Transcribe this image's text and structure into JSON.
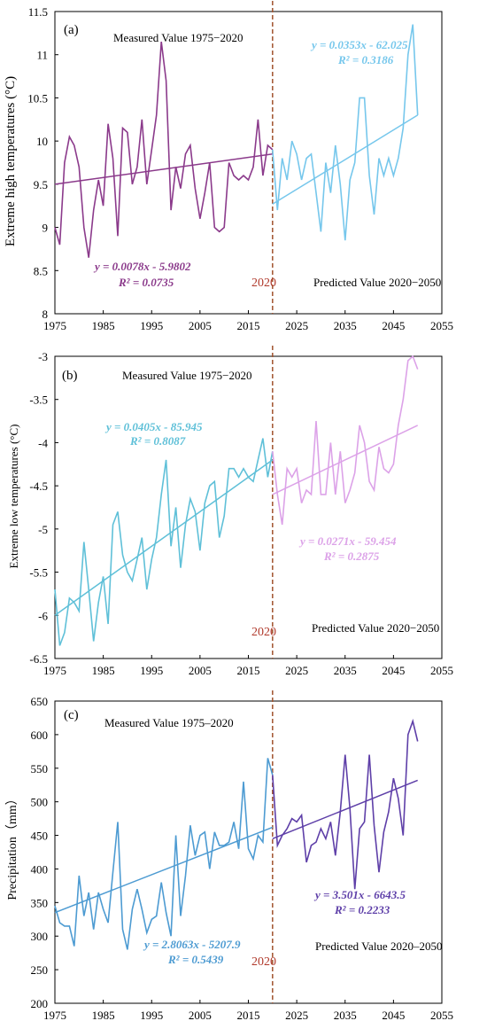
{
  "colors": {
    "divider": "#a0522d",
    "marker": "#b0392b",
    "a_measured": "#8b3a8b",
    "a_predicted": "#76c7ec",
    "b_measured": "#5fc0d8",
    "b_predicted": "#dca2e8",
    "c_measured": "#4d9bd2",
    "c_predicted": "#5e3fa8"
  },
  "chart_data": [
    {
      "type": "line",
      "panel_label": "(a)",
      "ylabel": "Extreme high temperatures (°C)",
      "ylim": [
        8,
        11.5
      ],
      "yticks": [
        8,
        8.5,
        9,
        9.5,
        10,
        10.5,
        11,
        11.5
      ],
      "xlim": [
        1975,
        2055
      ],
      "xticks": [
        1975,
        1985,
        1995,
        2005,
        2015,
        2025,
        2035,
        2045,
        2055
      ],
      "measured_label": "Measured Value 1975−2020",
      "predicted_label": "Predicted Value 2020−2050",
      "marker_year": "2020",
      "measured": {
        "x": [
          1975,
          1976,
          1977,
          1978,
          1979,
          1980,
          1981,
          1982,
          1983,
          1984,
          1985,
          1986,
          1987,
          1988,
          1989,
          1990,
          1991,
          1992,
          1993,
          1994,
          1995,
          1996,
          1997,
          1998,
          1999,
          2000,
          2001,
          2002,
          2003,
          2004,
          2005,
          2006,
          2007,
          2008,
          2009,
          2010,
          2011,
          2012,
          2013,
          2014,
          2015,
          2016,
          2017,
          2018,
          2019,
          2020
        ],
        "y": [
          9.0,
          8.8,
          9.75,
          10.05,
          9.95,
          9.7,
          9.0,
          8.65,
          9.2,
          9.55,
          9.25,
          10.2,
          9.8,
          8.9,
          10.15,
          10.1,
          9.5,
          9.7,
          10.25,
          9.5,
          9.9,
          10.3,
          11.15,
          10.7,
          9.2,
          9.7,
          9.45,
          9.85,
          9.95,
          9.45,
          9.1,
          9.4,
          9.75,
          9.0,
          8.95,
          9.0,
          9.75,
          9.6,
          9.55,
          9.6,
          9.55,
          9.7,
          10.25,
          9.6,
          9.95,
          9.9
        ]
      },
      "predicted": {
        "x": [
          2020,
          2021,
          2022,
          2023,
          2024,
          2025,
          2026,
          2027,
          2028,
          2029,
          2030,
          2031,
          2032,
          2033,
          2034,
          2035,
          2036,
          2037,
          2038,
          2039,
          2040,
          2041,
          2042,
          2043,
          2044,
          2045,
          2046,
          2047,
          2048,
          2049,
          2050
        ],
        "y": [
          9.9,
          9.2,
          9.8,
          9.55,
          10.0,
          9.85,
          9.55,
          9.8,
          9.85,
          9.4,
          8.95,
          9.75,
          9.4,
          9.95,
          9.5,
          8.85,
          9.55,
          9.75,
          10.5,
          10.5,
          9.6,
          9.15,
          9.8,
          9.6,
          9.8,
          9.6,
          9.8,
          10.15,
          11.0,
          11.35,
          10.3
        ]
      },
      "trend_measured": {
        "equation": "y = 0.0078x - 5.9802",
        "r2": "R² = 0.0735",
        "from": 1975,
        "to": 2020,
        "y1": 9.5,
        "y2": 9.85
      },
      "trend_predicted": {
        "equation": "y = 0.0353x - 62.025",
        "r2": "R² = 0.3186",
        "from": 2020,
        "to": 2050,
        "y1": 9.27,
        "y2": 10.3
      }
    },
    {
      "type": "line",
      "panel_label": "(b)",
      "ylabel": "Extreme low temperatures (°C)",
      "ylim": [
        -6.5,
        -3
      ],
      "yticks": [
        -6.5,
        -6,
        -5.5,
        -5,
        -4.5,
        -4,
        -3.5,
        -3
      ],
      "xlim": [
        1975,
        2055
      ],
      "xticks": [
        1975,
        1985,
        1995,
        2005,
        2015,
        2025,
        2035,
        2045,
        2055
      ],
      "measured_label": "Measured Value 1975−2020",
      "predicted_label": "Predicted Value 2020−2050",
      "marker_year": "2020",
      "measured": {
        "x": [
          1975,
          1976,
          1977,
          1978,
          1979,
          1980,
          1981,
          1982,
          1983,
          1984,
          1985,
          1986,
          1987,
          1988,
          1989,
          1990,
          1991,
          1992,
          1993,
          1994,
          1995,
          1996,
          1997,
          1998,
          1999,
          2000,
          2001,
          2002,
          2003,
          2004,
          2005,
          2006,
          2007,
          2008,
          2009,
          2010,
          2011,
          2012,
          2013,
          2014,
          2015,
          2016,
          2017,
          2018,
          2019,
          2020
        ],
        "y": [
          -5.7,
          -6.35,
          -6.2,
          -5.8,
          -5.85,
          -5.95,
          -5.15,
          -5.7,
          -6.3,
          -5.85,
          -5.55,
          -6.1,
          -4.95,
          -4.8,
          -5.3,
          -5.5,
          -5.6,
          -5.35,
          -5.1,
          -5.7,
          -5.35,
          -5.1,
          -4.6,
          -4.2,
          -5.2,
          -4.75,
          -5.45,
          -4.95,
          -4.65,
          -4.8,
          -5.25,
          -4.7,
          -4.5,
          -4.45,
          -5.1,
          -4.85,
          -4.3,
          -4.3,
          -4.4,
          -4.3,
          -4.4,
          -4.45,
          -4.2,
          -3.95,
          -4.4,
          -4.1
        ]
      },
      "predicted": {
        "x": [
          2020,
          2021,
          2022,
          2023,
          2024,
          2025,
          2026,
          2027,
          2028,
          2029,
          2030,
          2031,
          2032,
          2033,
          2034,
          2035,
          2036,
          2037,
          2038,
          2039,
          2040,
          2041,
          2042,
          2043,
          2044,
          2045,
          2046,
          2047,
          2048,
          2049,
          2050
        ],
        "y": [
          -4.1,
          -4.6,
          -4.95,
          -4.3,
          -4.4,
          -4.3,
          -4.7,
          -4.55,
          -4.6,
          -3.75,
          -4.6,
          -4.6,
          -4.0,
          -4.6,
          -4.1,
          -4.7,
          -4.55,
          -4.35,
          -3.8,
          -4.0,
          -4.45,
          -4.55,
          -4.05,
          -4.3,
          -4.35,
          -4.25,
          -3.8,
          -3.5,
          -3.05,
          -3.0,
          -3.15
        ]
      },
      "trend_measured": {
        "equation": "y = 0.0405x - 85.945",
        "r2": "R² = 0.8087",
        "from": 1975,
        "to": 2020,
        "y1": -6.0,
        "y2": -4.2
      },
      "trend_predicted": {
        "equation": "y = 0.0271x - 59.454",
        "r2": "R² = 0.2875",
        "from": 2020,
        "to": 2050,
        "y1": -4.6,
        "y2": -3.8
      }
    },
    {
      "type": "line",
      "panel_label": "(c)",
      "ylabel": "Precipitation（mm）",
      "ylim": [
        200,
        650
      ],
      "yticks": [
        200,
        250,
        300,
        350,
        400,
        450,
        500,
        550,
        600,
        650
      ],
      "xlim": [
        1975,
        2055
      ],
      "xticks": [
        1975,
        1985,
        1995,
        2005,
        2015,
        2025,
        2035,
        2045,
        2055
      ],
      "measured_label": "Measured Value 1975–2020",
      "predicted_label": "Predicted Value 2020–2050",
      "marker_year": "2020",
      "measured": {
        "x": [
          1975,
          1976,
          1977,
          1978,
          1979,
          1980,
          1981,
          1982,
          1983,
          1984,
          1985,
          1986,
          1987,
          1988,
          1989,
          1990,
          1991,
          1992,
          1993,
          1994,
          1995,
          1996,
          1997,
          1998,
          1999,
          2000,
          2001,
          2002,
          2003,
          2004,
          2005,
          2006,
          2007,
          2008,
          2009,
          2010,
          2011,
          2012,
          2013,
          2014,
          2015,
          2016,
          2017,
          2018,
          2019,
          2020
        ],
        "y": [
          345,
          320,
          315,
          315,
          285,
          390,
          330,
          365,
          310,
          365,
          340,
          320,
          395,
          470,
          310,
          280,
          340,
          370,
          340,
          305,
          325,
          330,
          380,
          335,
          300,
          450,
          330,
          390,
          465,
          420,
          450,
          455,
          400,
          455,
          435,
          435,
          440,
          470,
          430,
          530,
          430,
          415,
          450,
          440,
          565,
          540
        ]
      },
      "predicted": {
        "x": [
          2020,
          2021,
          2022,
          2023,
          2024,
          2025,
          2026,
          2027,
          2028,
          2029,
          2030,
          2031,
          2032,
          2033,
          2034,
          2035,
          2036,
          2037,
          2038,
          2039,
          2040,
          2041,
          2042,
          2043,
          2044,
          2045,
          2046,
          2047,
          2048,
          2049,
          2050
        ],
        "y": [
          540,
          435,
          450,
          460,
          475,
          470,
          480,
          410,
          435,
          440,
          460,
          445,
          470,
          420,
          485,
          570,
          490,
          370,
          460,
          470,
          570,
          465,
          395,
          455,
          485,
          535,
          505,
          450,
          600,
          620,
          590
        ]
      },
      "trend_measured": {
        "equation": "y = 2.8063x - 5207.9",
        "r2": "R² = 0.5439",
        "from": 1975,
        "to": 2020,
        "y1": 335,
        "y2": 462
      },
      "trend_predicted": {
        "equation": "y = 3.501x - 6643.5",
        "r2": "R² = 0.2233",
        "from": 2020,
        "to": 2050,
        "y1": 445,
        "y2": 532
      }
    }
  ]
}
